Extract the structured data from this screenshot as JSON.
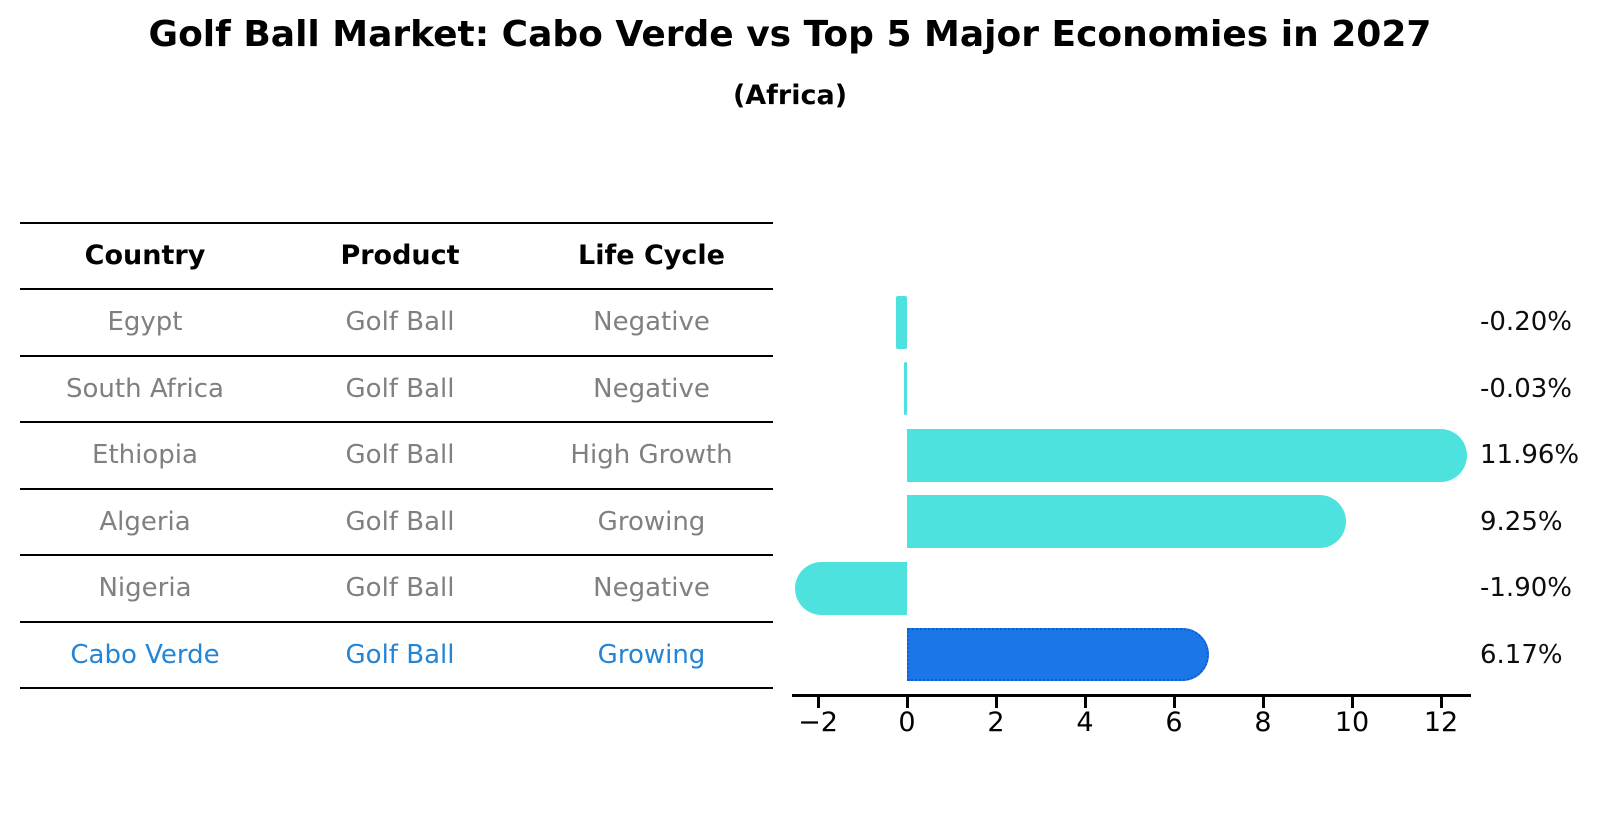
{
  "header": {
    "title": "Golf Ball Market: Cabo Verde vs Top 5 Major Economies in 2027",
    "subtitle": "(Africa)"
  },
  "table": {
    "columns": [
      "Country",
      "Product",
      "Life Cycle"
    ],
    "rows": [
      {
        "country": "Egypt",
        "product": "Golf Ball",
        "life_cycle": "Negative",
        "highlight": false
      },
      {
        "country": "South Africa",
        "product": "Golf Ball",
        "life_cycle": "Negative",
        "highlight": false
      },
      {
        "country": "Ethiopia",
        "product": "Golf Ball",
        "life_cycle": "High Growth",
        "highlight": false
      },
      {
        "country": "Algeria",
        "product": "Golf Ball",
        "life_cycle": "Growing",
        "highlight": false
      },
      {
        "country": "Nigeria",
        "product": "Golf Ball",
        "life_cycle": "Negative",
        "highlight": true
      },
      {
        "country": "Cabo Verde",
        "product": "Golf Ball",
        "life_cycle": "Growing",
        "highlight": true
      }
    ]
  },
  "chart_data": {
    "type": "bar",
    "orientation": "horizontal",
    "title": "Golf Ball Market: Cabo Verde vs Top 5 Major Economies in 2027",
    "subtitle": "(Africa)",
    "categories": [
      "Egypt",
      "South Africa",
      "Ethiopia",
      "Algeria",
      "Nigeria",
      "Cabo Verde"
    ],
    "values": [
      -0.2,
      -0.03,
      11.96,
      9.25,
      -1.9,
      6.17
    ],
    "value_labels": [
      "-0.20%",
      "-0.03%",
      "11.96%",
      "9.25%",
      "-1.90%",
      "6.17%"
    ],
    "highlight_index": 5,
    "x_ticks": [
      -2,
      0,
      2,
      4,
      6,
      8,
      10,
      12
    ],
    "x_tick_labels": [
      "−2",
      "0",
      "2",
      "4",
      "6",
      "8",
      "10",
      "12"
    ],
    "xlim": [
      -2.6,
      12.7
    ],
    "grid": false,
    "legend": "none",
    "unit_suffix": "%",
    "colors": {
      "bar_default": "#4de2de",
      "bar_highlight": "#1b76e8",
      "bar_highlight_border": "#0d5ecf",
      "text_gray": "#808080",
      "text_highlight_blue": "#2585d5",
      "axis_black": "#000000"
    }
  }
}
